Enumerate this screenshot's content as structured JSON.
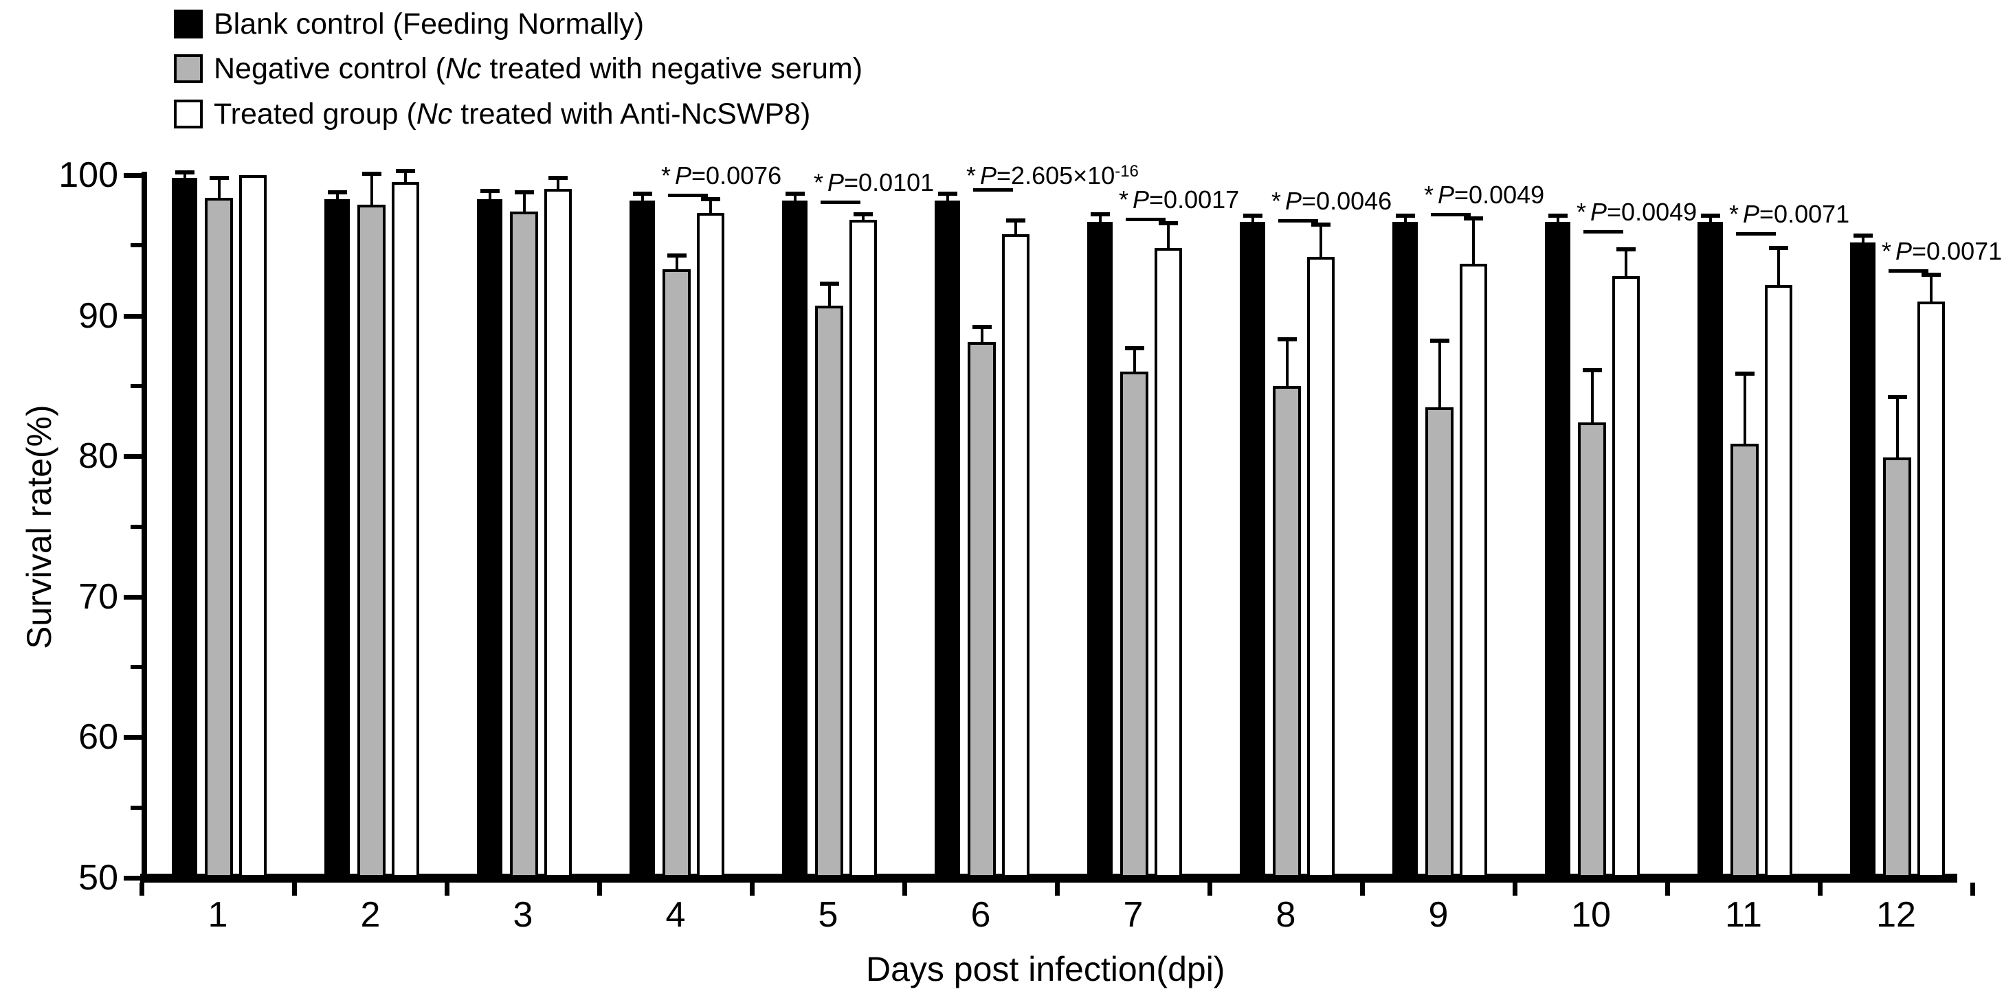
{
  "figure": {
    "legend": [
      {
        "swatch_name": "blank-control-swatch",
        "fill": "#000000",
        "border": "#000000",
        "prefix": "Blank control (Feeding Normally)",
        "italic": "",
        "suffix": ""
      },
      {
        "swatch_name": "negative-control-swatch",
        "fill": "#b3b3b3",
        "border": "#000000",
        "prefix": "Negative control (",
        "italic": "Nc",
        "suffix": " treated with negative serum)"
      },
      {
        "swatch_name": "treated-group-swatch",
        "fill": "#ffffff",
        "border": "#000000",
        "prefix": "Treated group (",
        "italic": "Nc",
        "suffix": " treated with Anti-NcSWP8)"
      }
    ],
    "colors": {
      "axis": "#000000",
      "bar_black": "#000000",
      "bar_gray": "#b3b3b3",
      "bar_white": "#ffffff",
      "background": "#ffffff"
    }
  },
  "chart_data": {
    "type": "bar",
    "title": "",
    "xlabel": "Days post infection(dpi)",
    "ylabel": "Survival rate(%)",
    "ylim": [
      50,
      100
    ],
    "y_major_ticks": [
      100,
      90,
      80,
      70,
      60,
      50
    ],
    "y_minor_ticks": [
      95,
      85,
      75,
      65,
      55
    ],
    "grid": false,
    "legend_position": "top-left",
    "categories": [
      "1",
      "2",
      "3",
      "4",
      "5",
      "6",
      "7",
      "8",
      "9",
      "10",
      "11",
      "12"
    ],
    "series": [
      {
        "name": "Blank control (Feeding Normally)",
        "color": "#000000",
        "values": [
          99.8,
          98.3,
          98.3,
          98.2,
          98.2,
          98.2,
          96.7,
          96.7,
          96.7,
          96.7,
          96.7,
          95.2
        ],
        "errors": [
          0.3,
          0.4,
          0.5,
          0.4,
          0.4,
          0.4,
          0.4,
          0.3,
          0.3,
          0.3,
          0.3,
          0.4
        ]
      },
      {
        "name": "Negative control (Nc treated with negative serum)",
        "color": "#b3b3b3",
        "values": [
          98.4,
          97.9,
          97.4,
          93.3,
          90.7,
          88.1,
          86.0,
          85.0,
          83.5,
          82.4,
          80.9,
          79.9
        ],
        "errors": [
          1.3,
          2.1,
          1.3,
          0.9,
          1.5,
          1.0,
          1.6,
          3.2,
          4.6,
          3.6,
          4.9,
          4.2
        ]
      },
      {
        "name": "Treated group (Nc treated with Anti-NcSWP8)",
        "color": "#ffffff",
        "values": [
          100.0,
          99.5,
          99.0,
          97.3,
          96.8,
          95.8,
          94.8,
          94.2,
          93.7,
          92.8,
          92.2,
          91.0
        ],
        "errors": [
          0.0,
          0.7,
          0.7,
          0.9,
          0.3,
          0.9,
          1.7,
          2.2,
          3.1,
          1.8,
          2.5,
          1.8
        ]
      }
    ],
    "annotations": [
      {
        "day": 4,
        "star": "*",
        "p": "P",
        "value": "0.0076",
        "exponent": null
      },
      {
        "day": 5,
        "star": "*",
        "p": "P",
        "value": "0.0101",
        "exponent": null
      },
      {
        "day": 6,
        "star": "*",
        "p": "P",
        "value": "2.605×10",
        "exponent": "-16"
      },
      {
        "day": 7,
        "star": "*",
        "p": "P",
        "value": "0.0017",
        "exponent": null
      },
      {
        "day": 8,
        "star": "*",
        "p": "P",
        "value": "0.0046",
        "exponent": null
      },
      {
        "day": 9,
        "star": "*",
        "p": "P",
        "value": "0.0049",
        "exponent": null
      },
      {
        "day": 10,
        "star": "*",
        "p": "P",
        "value": "0.0049",
        "exponent": null
      },
      {
        "day": 11,
        "star": "*",
        "p": "P",
        "value": "0.0071",
        "exponent": null
      },
      {
        "day": 12,
        "star": "*",
        "p": "P",
        "value": "0.0071",
        "exponent": null
      }
    ]
  }
}
